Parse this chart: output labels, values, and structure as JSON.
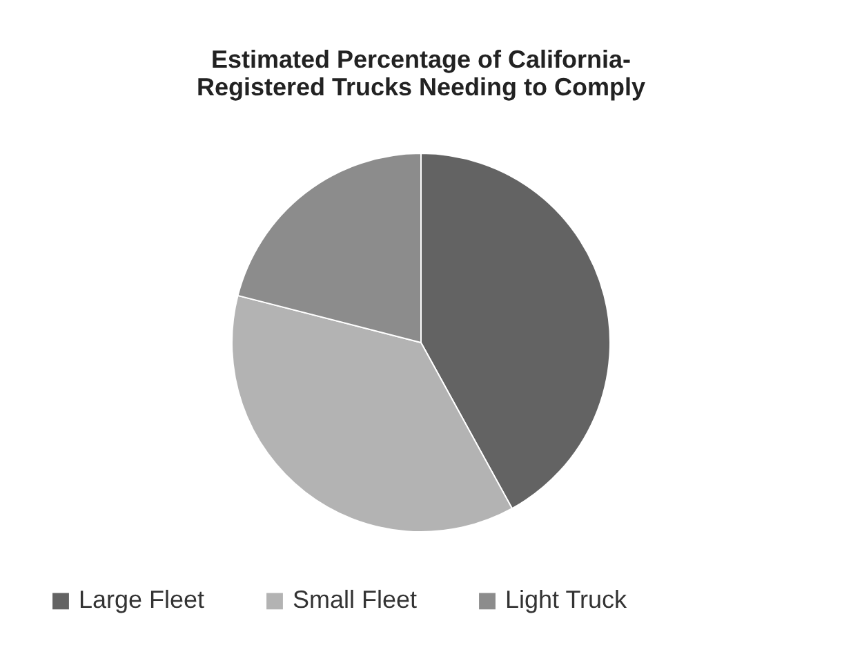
{
  "chart_data": {
    "type": "pie",
    "title": "Estimated Percentage of California-\nRegistered Trucks Needing to Comply",
    "categories": [
      "Large Fleet",
      "Small Fleet",
      "Light Truck"
    ],
    "values": [
      42,
      37,
      21
    ],
    "colors": [
      "#636363",
      "#b3b3b3",
      "#8c8c8c"
    ],
    "legend": "bottom"
  }
}
